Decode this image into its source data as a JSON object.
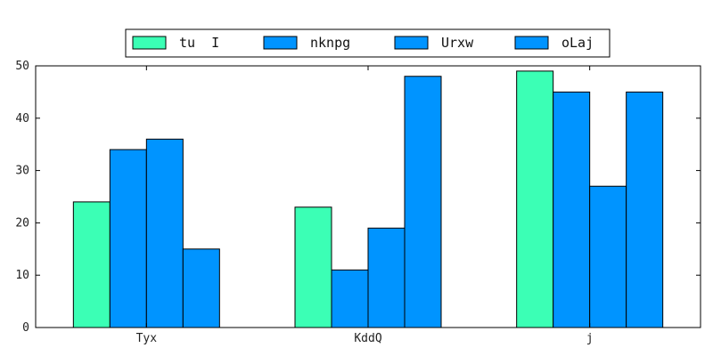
{
  "chart_data": {
    "type": "bar",
    "categories": [
      "Tyx",
      "KddQ",
      "j"
    ],
    "series": [
      {
        "name": "tu  I",
        "color": "#3bffb5",
        "values": [
          24,
          23,
          49
        ]
      },
      {
        "name": "nknpg",
        "color": "#0094ff",
        "values": [
          34,
          11,
          45
        ]
      },
      {
        "name": "Urxw",
        "color": "#0094ff",
        "values": [
          36,
          19,
          27
        ]
      },
      {
        "name": "oLaj",
        "color": "#0094ff",
        "values": [
          15,
          48,
          45
        ]
      }
    ],
    "ylim": [
      0,
      50
    ],
    "yticks": [
      "0",
      "10",
      "20",
      "30",
      "40",
      "50"
    ],
    "legend_position": "top",
    "grid": false
  }
}
